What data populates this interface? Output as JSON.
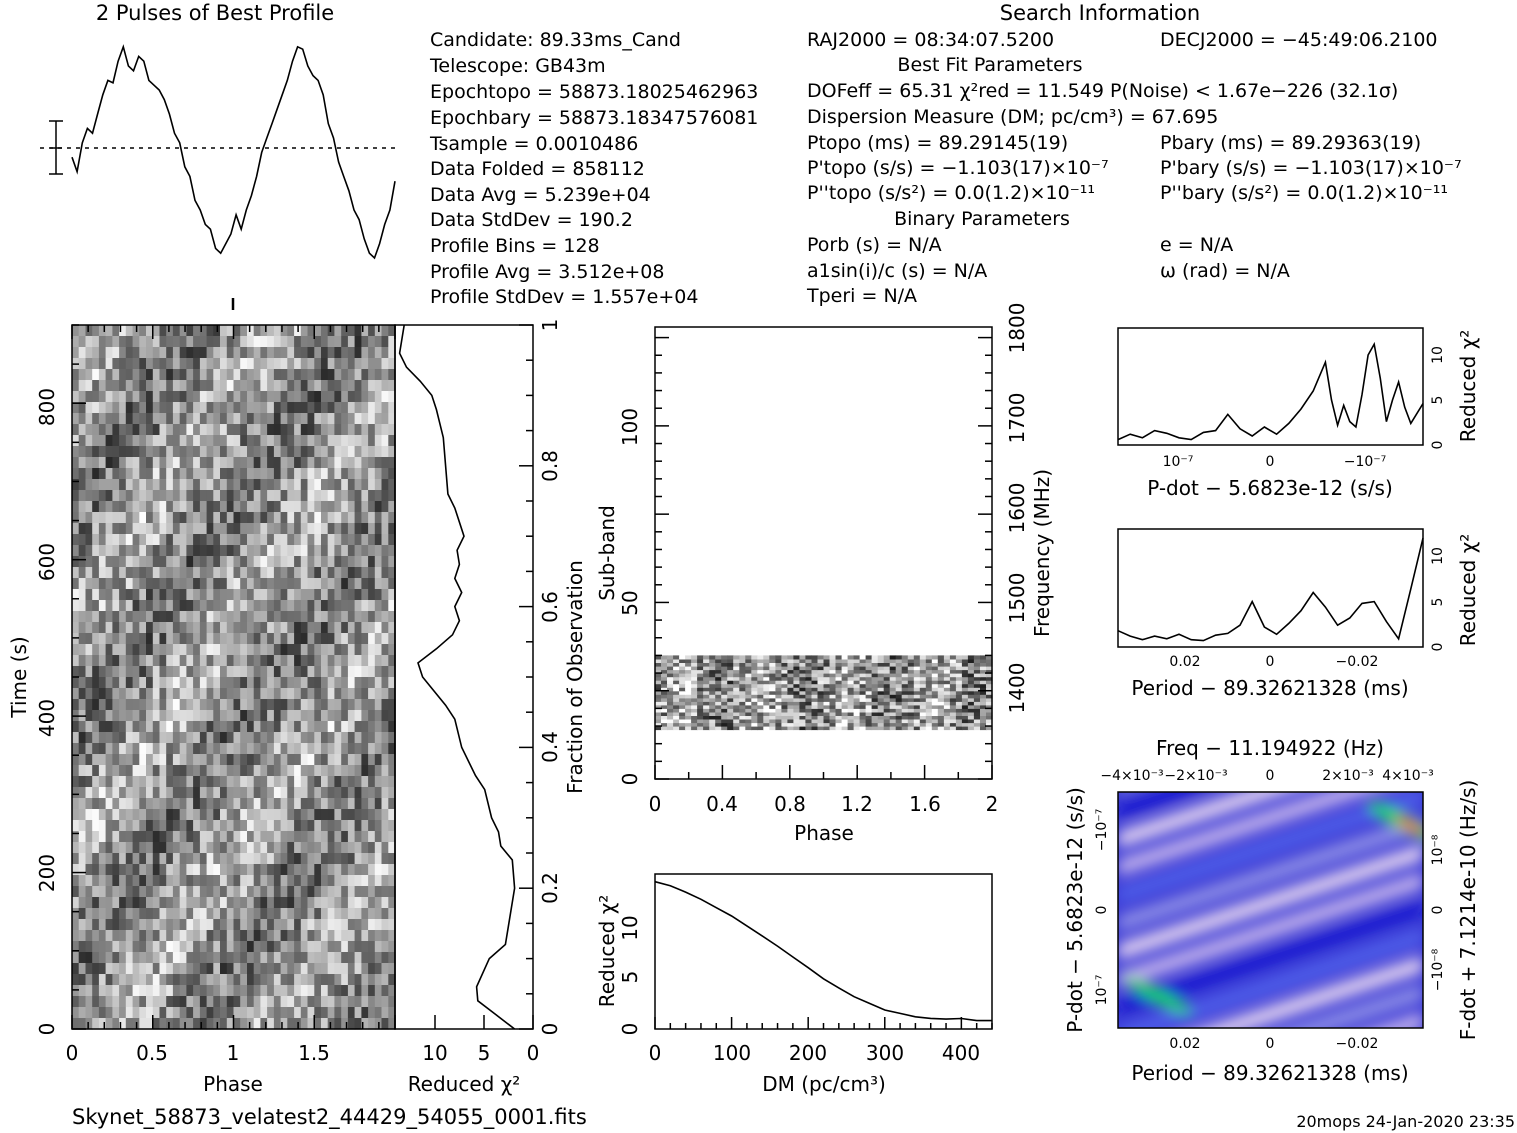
{
  "window": {
    "filename": "Skynet_58873_velatest2_44429_54055_0001.fits",
    "stamp": "20mops 24-Jan-2020 23:35"
  },
  "profile": {
    "title": "2 Pulses of Best Profile"
  },
  "search_info": {
    "title": "Search Information",
    "ra": "RAJ2000 = 08:34:07.5200",
    "dec": "DECJ2000 = −45:49:06.2100",
    "best_fit_title": "Best Fit Parameters",
    "binary_title": "Binary Parameters"
  },
  "candidate_lines": [
    "Candidate:  89.33ms_Cand",
    "Telescope:  GB43m",
    "Epochtopo = 58873.18025462963",
    "Epochbary = 58873.18347576081",
    "Tsample         =  0.0010486",
    "Data Folded   =  858112",
    "Data Avg        =  5.239e+04",
    "Data StdDev  =  190.2",
    "Profile Bins   =  128",
    "Profile Avg    =  3.512e+08",
    "Profile StdDev =  1.557e+04"
  ],
  "fit_lines": [
    "DOFeff = 65.31   χ²red = 11.549   P(Noise) < 1.67e−226  (32.1σ)",
    "Dispersion Measure (DM; pc/cm³) = 67.695",
    "Ptopo (ms) =  89.29145(19)",
    "P'topo (s/s) = −1.103(17)×10⁻⁷",
    "P''topo (s/s²) = 0.0(1.2)×10⁻¹¹",
    "Pbary (ms) =  89.29363(19)",
    "P'bary (s/s) = −1.103(17)×10⁻⁷",
    "P''bary (s/s²) = 0.0(1.2)×10⁻¹¹"
  ],
  "binary_lines": [
    "Porb (s) = N/A",
    "a1sin(i)/c (s) = N/A",
    "Tperi = N/A",
    "e = N/A",
    "ω (rad) = N/A"
  ],
  "chart_data": [
    {
      "type": "line",
      "title": "2 Pulses of Best Profile",
      "xlabel": "",
      "ylabel": "",
      "x_range": [
        0,
        2
      ],
      "values": [
        0.52,
        0.46,
        0.58,
        0.64,
        0.62,
        0.7,
        0.78,
        0.84,
        0.83,
        0.92,
        0.98,
        0.9,
        0.88,
        0.94,
        0.92,
        0.84,
        0.82,
        0.8,
        0.76,
        0.7,
        0.62,
        0.58,
        0.48,
        0.44,
        0.34,
        0.3,
        0.24,
        0.22,
        0.14,
        0.12,
        0.16,
        0.2,
        0.28,
        0.22,
        0.3,
        0.36,
        0.44,
        0.54,
        0.6,
        0.66,
        0.72,
        0.78,
        0.84,
        0.92,
        0.98,
        0.97,
        0.9,
        0.86,
        0.84,
        0.78,
        0.66,
        0.6,
        0.5,
        0.44,
        0.38,
        0.3,
        0.26,
        0.18,
        0.12,
        0.1,
        0.16,
        0.24,
        0.3,
        0.42
      ]
    },
    {
      "type": "heatmap",
      "name": "time-phase",
      "xlabel": "Phase",
      "ylabel": "Time (s)",
      "xlim": [
        0,
        2
      ],
      "ylim": [
        0,
        900
      ],
      "xticks": [
        "0",
        "0.5",
        "1",
        "1.5"
      ],
      "yticks": [
        "0",
        "200",
        "400",
        "600",
        "800"
      ]
    },
    {
      "type": "line",
      "name": "time-chi2",
      "xlabel": "Reduced χ²",
      "ylabel": "Fraction of Observation",
      "xlim": [
        12,
        0
      ],
      "ylim": [
        0,
        1
      ],
      "xticks": [
        "10",
        "5",
        "0"
      ],
      "yticks": [
        "0",
        "0.2",
        "0.4",
        "0.6",
        "0.8",
        "1"
      ],
      "x": [
        1.6,
        3.2,
        4.8,
        4.9,
        3.8,
        2.4,
        2.0,
        1.6,
        1.8,
        2.8,
        3.0,
        3.6,
        4.2,
        5.0,
        6.2,
        6.8,
        7.6,
        8.6,
        9.6,
        10.0,
        8.4,
        7.0,
        6.4,
        6.8,
        6.2,
        6.8,
        6.4,
        6.6,
        6.0,
        6.8,
        7.4,
        7.6,
        7.8,
        8.4,
        8.8,
        9.8,
        11.0,
        11.6,
        11.4,
        11.2
      ],
      "y": [
        0,
        0.02,
        0.04,
        0.06,
        0.1,
        0.12,
        0.16,
        0.2,
        0.24,
        0.26,
        0.28,
        0.3,
        0.34,
        0.36,
        0.4,
        0.44,
        0.46,
        0.48,
        0.5,
        0.52,
        0.54,
        0.56,
        0.58,
        0.6,
        0.62,
        0.64,
        0.66,
        0.68,
        0.7,
        0.74,
        0.76,
        0.8,
        0.84,
        0.88,
        0.9,
        0.92,
        0.94,
        0.96,
        0.98,
        1.0
      ]
    },
    {
      "type": "heatmap",
      "name": "subband-phase",
      "xlabel": "Phase",
      "ylabel": "Sub-band",
      "y2label": "Frequency (MHz)",
      "xlim": [
        0,
        2
      ],
      "ylim": [
        0,
        128
      ],
      "y2lim": [
        1300,
        1800
      ],
      "xticks": [
        "0",
        "0.4",
        "0.8",
        "1.2",
        "1.6",
        "2"
      ],
      "yticks": [
        "0",
        "50",
        "100"
      ],
      "y2ticks": [
        "1400",
        "1500",
        "1600",
        "1700",
        "1800"
      ],
      "occupied_subbands": [
        14,
        35
      ]
    },
    {
      "type": "line",
      "name": "dm-chi2",
      "xlabel": "DM (pc/cm³)",
      "ylabel": "Reduced χ²",
      "xlim": [
        0,
        440
      ],
      "ylim": [
        0,
        13
      ],
      "xticks": [
        "0",
        "100",
        "200",
        "300",
        "400"
      ],
      "yticks": [
        "0",
        "5",
        "10"
      ],
      "x": [
        0,
        20,
        40,
        60,
        80,
        100,
        120,
        140,
        160,
        180,
        200,
        220,
        240,
        260,
        280,
        300,
        320,
        340,
        360,
        380,
        400,
        420,
        440
      ],
      "y": [
        12.3,
        12.0,
        11.5,
        10.9,
        10.2,
        9.4,
        8.6,
        7.8,
        6.9,
        6.0,
        5.1,
        4.2,
        3.4,
        2.7,
        2.1,
        1.6,
        1.3,
        1.1,
        0.9,
        0.85,
        0.8,
        0.75,
        0.7
      ]
    },
    {
      "type": "line",
      "name": "pdot-chi2",
      "xlabel": "P-dot − 5.6823e-12 (s/s)",
      "ylabel": "Reduced χ²",
      "ylim": [
        0,
        13
      ],
      "xticks": [
        "10⁻⁷",
        "0",
        "−10⁻⁷"
      ],
      "yticks": [
        "0",
        "5",
        "10"
      ],
      "x": [
        0,
        0.04,
        0.08,
        0.12,
        0.16,
        0.2,
        0.24,
        0.28,
        0.32,
        0.36,
        0.4,
        0.44,
        0.48,
        0.52,
        0.56,
        0.6,
        0.64,
        0.68,
        0.7,
        0.72,
        0.74,
        0.76,
        0.78,
        0.8,
        0.82,
        0.84,
        0.86,
        0.88,
        0.9,
        0.92,
        0.94,
        0.96,
        1.0
      ],
      "y": [
        0.6,
        1.2,
        0.8,
        1.6,
        1.3,
        0.8,
        0.6,
        1.4,
        1.6,
        3.4,
        1.8,
        1.0,
        2.0,
        1.2,
        2.4,
        4.0,
        6.0,
        9.2,
        5.0,
        2.2,
        4.4,
        2.6,
        2.0,
        5.6,
        10.0,
        11.2,
        7.4,
        2.6,
        5.0,
        7.0,
        4.2,
        2.4,
        4.6
      ]
    },
    {
      "type": "line",
      "name": "period-chi2",
      "xlabel": "Period − 89.32621328 (ms)",
      "ylabel": "Reduced χ²",
      "ylim": [
        0,
        13
      ],
      "xticks": [
        "0.02",
        "0",
        "−0.02"
      ],
      "yticks": [
        "0",
        "5",
        "10"
      ],
      "x": [
        0,
        0.04,
        0.08,
        0.12,
        0.16,
        0.2,
        0.24,
        0.28,
        0.32,
        0.36,
        0.4,
        0.44,
        0.48,
        0.52,
        0.56,
        0.6,
        0.64,
        0.68,
        0.72,
        0.76,
        0.8,
        0.84,
        0.88,
        0.92,
        0.96,
        1.0
      ],
      "y": [
        1.8,
        1.2,
        0.8,
        1.2,
        0.9,
        1.4,
        0.8,
        0.7,
        1.3,
        1.5,
        2.4,
        5.0,
        2.2,
        1.4,
        2.6,
        4.0,
        6.0,
        4.4,
        2.4,
        3.2,
        4.8,
        5.0,
        2.8,
        0.9,
        6.4,
        12.0
      ]
    },
    {
      "type": "heatmap",
      "name": "period-pdot",
      "title": "Freq − 11.194922 (Hz)",
      "xlabel": "Period − 89.32621328 (ms)",
      "ylabel": "P-dot − 5.6823e-12 (s/s)",
      "y2label": "F-dot + 7.1214e-10 (Hz/s)",
      "xticks": [
        "0.02",
        "0",
        "−0.02"
      ],
      "x2ticks": [
        "−4×10⁻³",
        "−2×10⁻³",
        "0",
        "2×10⁻³",
        "4×10⁻³"
      ],
      "yticks": [
        "10⁻⁷",
        "0",
        "−10⁻⁷"
      ],
      "y2ticks": [
        "−10⁻⁸",
        "0",
        "10⁻⁸"
      ],
      "colors": [
        "#1a1ad0",
        "#4f5fe8",
        "#8f8fe6",
        "#c4b4ec",
        "#e6d6f0",
        "#ffffff",
        "#22c8ff",
        "#12d860",
        "#ffee00",
        "#ff1a00"
      ]
    }
  ]
}
